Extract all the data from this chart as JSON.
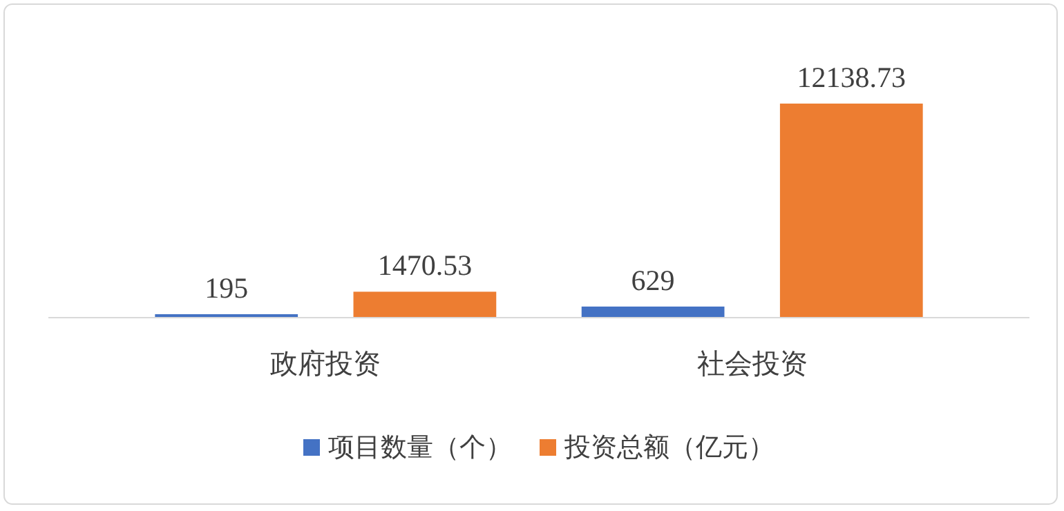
{
  "chart_data": {
    "type": "bar",
    "categories": [
      "政府投资",
      "社会投资"
    ],
    "series": [
      {
        "name": "项目数量（个）",
        "color": "#4472c4",
        "values": [
          195,
          629
        ]
      },
      {
        "name": "投资总额（亿元）",
        "color": "#ed7d31",
        "values": [
          1470.53,
          12138.73
        ]
      }
    ],
    "data_labels": true,
    "legend": "bottom"
  }
}
